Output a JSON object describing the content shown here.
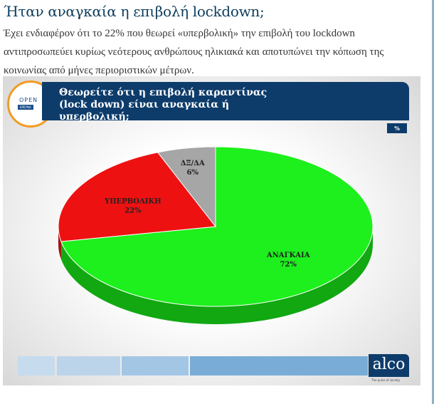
{
  "article": {
    "title": "Ήταν αναγκαία η επιβολή lockdown;",
    "body": "Έχει ενδιαφέρον ότι το 22% που θεωρεί «υπερβολική» την επιβολή του lockdown αντιπροσωπεύει κυρίως νεότερους ανθρώπους ηλικιακά και αποτυπώνει την κόπωση της κοινωνίας από μήνες περιοριστικών μέτρων."
  },
  "slide": {
    "logo_top": "OPEN",
    "logo_bottom": "ΕΡΕΥΝΑ",
    "unit": "%",
    "brand": "alco",
    "brand_tagline": "The pulse of society"
  },
  "colors": {
    "green": "#1df01d",
    "red": "#ee1111",
    "grey": "#a6a6a6",
    "navy": "#0d3c6b"
  },
  "chart_data": {
    "type": "pie",
    "title": "Θεωρείτε ότι η επιβολή  καραντίνας (lock down) είναι αναγκαία ή υπερβολική;",
    "categories": [
      "ΑΝΑΓΚΑΙΑ",
      "ΥΠΕΡΒΟΛΙΚΗ",
      "ΔΞ/ΔΑ"
    ],
    "values": [
      72,
      22,
      6
    ],
    "labels": [
      "72%",
      "22%",
      "6%"
    ],
    "legend": "none"
  }
}
